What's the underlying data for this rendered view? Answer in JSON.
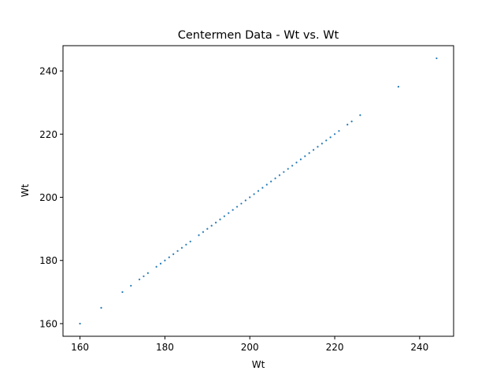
{
  "chart_data": {
    "type": "scatter",
    "title": "Centermen Data - Wt vs. Wt",
    "xlabel": "Wt",
    "ylabel": "Wt",
    "xlim": [
      156,
      248
    ],
    "ylim": [
      156,
      248
    ],
    "xticks": [
      160,
      180,
      200,
      220,
      240
    ],
    "yticks": [
      160,
      180,
      200,
      220,
      240
    ],
    "grid": false,
    "marker_color": "#1f77b4",
    "series": [
      {
        "x": [
          160,
          165,
          170,
          172,
          174,
          175,
          176,
          178,
          179,
          180,
          181,
          182,
          183,
          184,
          185,
          186,
          188,
          189,
          190,
          191,
          192,
          193,
          194,
          195,
          196,
          197,
          198,
          199,
          200,
          201,
          202,
          203,
          204,
          205,
          206,
          207,
          208,
          209,
          210,
          211,
          212,
          213,
          214,
          215,
          216,
          217,
          218,
          219,
          220,
          221,
          223,
          224,
          226,
          235,
          244
        ],
        "y": [
          160,
          165,
          170,
          172,
          174,
          175,
          176,
          178,
          179,
          180,
          181,
          182,
          183,
          184,
          185,
          186,
          188,
          189,
          190,
          191,
          192,
          193,
          194,
          195,
          196,
          197,
          198,
          199,
          200,
          201,
          202,
          203,
          204,
          205,
          206,
          207,
          208,
          209,
          210,
          211,
          212,
          213,
          214,
          215,
          216,
          217,
          218,
          219,
          220,
          221,
          223,
          224,
          226,
          235,
          244
        ]
      }
    ]
  }
}
